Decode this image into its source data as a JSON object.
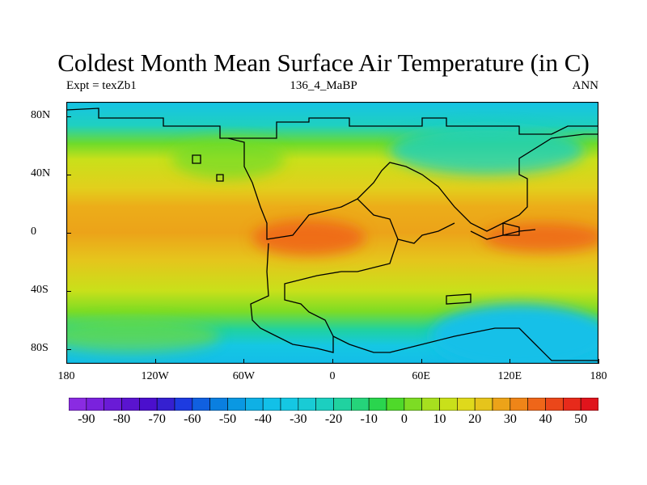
{
  "title": "Coldest Month Mean Surface Air Temperature (in C)",
  "subtitle_left": "Expt = texZb1",
  "subtitle_center": "136_4_MaBP",
  "subtitle_right": "ANN",
  "map": {
    "lat_range": [
      -90,
      90
    ],
    "lon_range": [
      -180,
      180
    ],
    "y_ticks": [
      {
        "lat": 80,
        "label": "80N"
      },
      {
        "lat": 40,
        "label": "40N"
      },
      {
        "lat": 0,
        "label": "0"
      },
      {
        "lat": -40,
        "label": "40S"
      },
      {
        "lat": -80,
        "label": "80S"
      }
    ],
    "x_ticks": [
      {
        "lon": -180,
        "label": "180"
      },
      {
        "lon": -120,
        "label": "120W"
      },
      {
        "lon": -60,
        "label": "60W"
      },
      {
        "lon": 0,
        "label": "0"
      },
      {
        "lon": 60,
        "label": "60E"
      },
      {
        "lon": 120,
        "label": "120E"
      },
      {
        "lon": 180,
        "label": "180"
      }
    ]
  },
  "colorbar": {
    "levels": [
      -90,
      -85,
      -80,
      -75,
      -70,
      -65,
      -60,
      -55,
      -50,
      -45,
      -40,
      -35,
      -30,
      -25,
      -20,
      -15,
      -10,
      -5,
      0,
      5,
      10,
      15,
      20,
      25,
      30,
      35,
      40,
      45,
      50
    ],
    "colors": [
      "#8a2be2",
      "#7a22dd",
      "#6a1bd6",
      "#5a14cf",
      "#4b0fcd",
      "#3520d0",
      "#1d3be0",
      "#1060e0",
      "#0a7fe0",
      "#0a98e2",
      "#0fb0e5",
      "#12c0e8",
      "#15c7e3",
      "#19cbd5",
      "#1ccfc0",
      "#20d2a0",
      "#25d47a",
      "#2ad54e",
      "#4fd92a",
      "#7ddc24",
      "#a7df1f",
      "#c9e01a",
      "#dfd91c",
      "#e6c41c",
      "#eca319",
      "#ef8518",
      "#ef6619",
      "#eb471a",
      "#e72a1b",
      "#e0141c"
    ],
    "labels": [
      "-90",
      "-80",
      "-70",
      "-60",
      "-50",
      "-40",
      "-30",
      "-20",
      "-10",
      "0",
      "10",
      "20",
      "30",
      "40",
      "50"
    ]
  }
}
